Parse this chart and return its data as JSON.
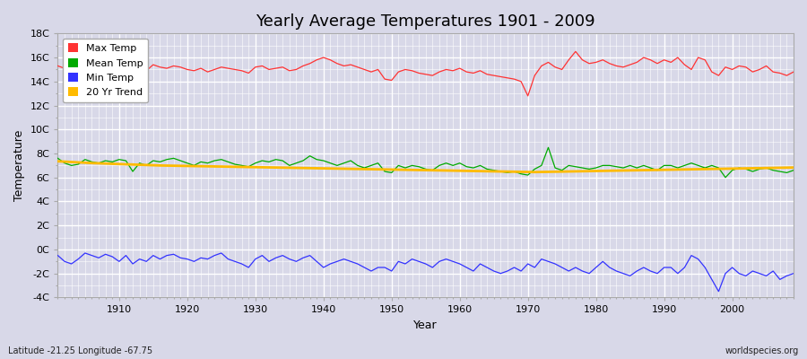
{
  "title": "Yearly Average Temperatures 1901 - 2009",
  "xlabel": "Year",
  "ylabel": "Temperature",
  "subtitle": "Latitude -21.25 Longitude -67.75",
  "watermark": "worldspecies.org",
  "years": [
    1901,
    1902,
    1903,
    1904,
    1905,
    1906,
    1907,
    1908,
    1909,
    1910,
    1911,
    1912,
    1913,
    1914,
    1915,
    1916,
    1917,
    1918,
    1919,
    1920,
    1921,
    1922,
    1923,
    1924,
    1925,
    1926,
    1927,
    1928,
    1929,
    1930,
    1931,
    1932,
    1933,
    1934,
    1935,
    1936,
    1937,
    1938,
    1939,
    1940,
    1941,
    1942,
    1943,
    1944,
    1945,
    1946,
    1947,
    1948,
    1949,
    1950,
    1951,
    1952,
    1953,
    1954,
    1955,
    1956,
    1957,
    1958,
    1959,
    1960,
    1961,
    1962,
    1963,
    1964,
    1965,
    1966,
    1967,
    1968,
    1969,
    1970,
    1971,
    1972,
    1973,
    1974,
    1975,
    1976,
    1977,
    1978,
    1979,
    1980,
    1981,
    1982,
    1983,
    1984,
    1985,
    1986,
    1987,
    1988,
    1989,
    1990,
    1991,
    1992,
    1993,
    1994,
    1995,
    1996,
    1997,
    1998,
    1999,
    2000,
    2001,
    2002,
    2003,
    2004,
    2005,
    2006,
    2007,
    2008,
    2009
  ],
  "max_temp": [
    15.3,
    15.1,
    15.2,
    14.5,
    15.0,
    15.2,
    15.1,
    15.0,
    14.8,
    14.6,
    15.2,
    15.3,
    15.1,
    14.9,
    15.4,
    15.2,
    15.1,
    15.3,
    15.2,
    15.0,
    14.9,
    15.1,
    14.8,
    15.0,
    15.2,
    15.1,
    15.0,
    14.9,
    14.7,
    15.2,
    15.3,
    15.0,
    15.1,
    15.2,
    14.9,
    15.0,
    15.3,
    15.5,
    15.8,
    16.0,
    15.8,
    15.5,
    15.3,
    15.4,
    15.2,
    15.0,
    14.8,
    15.0,
    14.2,
    14.1,
    14.8,
    15.0,
    14.9,
    14.7,
    14.6,
    14.5,
    14.8,
    15.0,
    14.9,
    15.1,
    14.8,
    14.7,
    14.9,
    14.6,
    14.5,
    14.4,
    14.3,
    14.2,
    14.0,
    12.8,
    14.5,
    15.3,
    15.6,
    15.2,
    15.0,
    15.8,
    16.5,
    15.8,
    15.5,
    15.6,
    15.8,
    15.5,
    15.3,
    15.2,
    15.4,
    15.6,
    16.0,
    15.8,
    15.5,
    15.8,
    15.6,
    16.0,
    15.4,
    15.0,
    16.0,
    15.8,
    14.8,
    14.5,
    15.2,
    15.0,
    15.3,
    15.2,
    14.8,
    15.0,
    15.3,
    14.8,
    14.7,
    14.5,
    14.8
  ],
  "mean_temp": [
    7.6,
    7.2,
    7.0,
    7.1,
    7.5,
    7.3,
    7.2,
    7.4,
    7.3,
    7.5,
    7.4,
    6.5,
    7.2,
    7.0,
    7.4,
    7.3,
    7.5,
    7.6,
    7.4,
    7.2,
    7.0,
    7.3,
    7.2,
    7.4,
    7.5,
    7.3,
    7.1,
    7.0,
    6.9,
    7.2,
    7.4,
    7.3,
    7.5,
    7.4,
    7.0,
    7.2,
    7.4,
    7.8,
    7.5,
    7.4,
    7.2,
    7.0,
    7.2,
    7.4,
    7.0,
    6.8,
    7.0,
    7.2,
    6.5,
    6.4,
    7.0,
    6.8,
    7.0,
    6.9,
    6.7,
    6.6,
    7.0,
    7.2,
    7.0,
    7.2,
    6.9,
    6.8,
    7.0,
    6.7,
    6.6,
    6.5,
    6.4,
    6.5,
    6.3,
    6.2,
    6.7,
    7.0,
    8.5,
    6.8,
    6.6,
    7.0,
    6.9,
    6.8,
    6.7,
    6.8,
    7.0,
    7.0,
    6.9,
    6.8,
    7.0,
    6.8,
    7.0,
    6.8,
    6.6,
    7.0,
    7.0,
    6.8,
    7.0,
    7.2,
    7.0,
    6.8,
    7.0,
    6.8,
    6.0,
    6.6,
    6.8,
    6.7,
    6.5,
    6.7,
    6.8,
    6.6,
    6.5,
    6.4,
    6.6
  ],
  "min_temp": [
    -0.5,
    -1.0,
    -1.2,
    -0.8,
    -0.3,
    -0.5,
    -0.7,
    -0.4,
    -0.6,
    -1.0,
    -0.5,
    -1.2,
    -0.8,
    -1.0,
    -0.5,
    -0.8,
    -0.5,
    -0.4,
    -0.7,
    -0.8,
    -1.0,
    -0.7,
    -0.8,
    -0.5,
    -0.3,
    -0.8,
    -1.0,
    -1.2,
    -1.5,
    -0.8,
    -0.5,
    -1.0,
    -0.7,
    -0.5,
    -0.8,
    -1.0,
    -0.7,
    -0.5,
    -1.0,
    -1.5,
    -1.2,
    -1.0,
    -0.8,
    -1.0,
    -1.2,
    -1.5,
    -1.8,
    -1.5,
    -1.5,
    -1.8,
    -1.0,
    -1.2,
    -0.8,
    -1.0,
    -1.2,
    -1.5,
    -1.0,
    -0.8,
    -1.0,
    -1.2,
    -1.5,
    -1.8,
    -1.2,
    -1.5,
    -1.8,
    -2.0,
    -1.8,
    -1.5,
    -1.8,
    -1.2,
    -1.5,
    -0.8,
    -1.0,
    -1.2,
    -1.5,
    -1.8,
    -1.5,
    -1.8,
    -2.0,
    -1.5,
    -1.0,
    -1.5,
    -1.8,
    -2.0,
    -2.2,
    -1.8,
    -1.5,
    -1.8,
    -2.0,
    -1.5,
    -1.5,
    -2.0,
    -1.5,
    -0.5,
    -0.8,
    -1.5,
    -2.5,
    -3.5,
    -2.0,
    -1.5,
    -2.0,
    -2.2,
    -1.8,
    -2.0,
    -2.2,
    -1.8,
    -2.5,
    -2.2,
    -2.0
  ],
  "trend_values": [
    7.35,
    7.32,
    7.29,
    7.26,
    7.23,
    7.2,
    7.18,
    7.16,
    7.14,
    7.12,
    7.1,
    7.08,
    7.06,
    7.04,
    7.02,
    7.0,
    6.99,
    6.98,
    6.97,
    6.96,
    6.95,
    6.94,
    6.93,
    6.92,
    6.91,
    6.9,
    6.89,
    6.88,
    6.87,
    6.86,
    6.85,
    6.84,
    6.83,
    6.82,
    6.81,
    6.8,
    6.79,
    6.78,
    6.77,
    6.76,
    6.75,
    6.74,
    6.73,
    6.72,
    6.71,
    6.7,
    6.69,
    6.68,
    6.67,
    6.66,
    6.65,
    6.64,
    6.63,
    6.62,
    6.61,
    6.6,
    6.59,
    6.58,
    6.57,
    6.56,
    6.55,
    6.54,
    6.53,
    6.52,
    6.51,
    6.5,
    6.49,
    6.48,
    6.47,
    6.46,
    6.45,
    6.46,
    6.47,
    6.48,
    6.49,
    6.5,
    6.51,
    6.52,
    6.53,
    6.54,
    6.55,
    6.56,
    6.57,
    6.58,
    6.59,
    6.6,
    6.61,
    6.62,
    6.63,
    6.64,
    6.65,
    6.66,
    6.67,
    6.68,
    6.69,
    6.7,
    6.71,
    6.72,
    6.73,
    6.74,
    6.75,
    6.76,
    6.77,
    6.78,
    6.79,
    6.8,
    6.81,
    6.82,
    6.83
  ],
  "max_color": "#ff3333",
  "mean_color": "#00aa00",
  "min_color": "#3333ff",
  "trend_color": "#ffbb00",
  "bg_color": "#d8d8e8",
  "plot_bg_color": "#d8d8e8",
  "grid_color": "#ffffff",
  "ylim": [
    -4,
    18
  ],
  "yticks": [
    -4,
    -2,
    0,
    2,
    4,
    6,
    8,
    10,
    12,
    14,
    16,
    18
  ],
  "ytick_labels": [
    "-4C",
    "-2C",
    "0C",
    "2C",
    "4C",
    "6C",
    "8C",
    "10C",
    "12C",
    "14C",
    "16C",
    "18C"
  ],
  "legend_labels": [
    "Max Temp",
    "Mean Temp",
    "Min Temp",
    "20 Yr Trend"
  ],
  "legend_colors": [
    "#ff3333",
    "#00aa00",
    "#3333ff",
    "#ffbb00"
  ]
}
